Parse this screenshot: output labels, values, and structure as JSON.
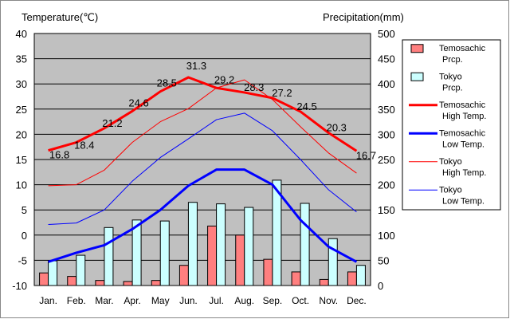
{
  "chart_data": {
    "type": "bar+line",
    "categories": [
      "Jan.",
      "Feb.",
      "Mar.",
      "Apr.",
      "May",
      "Jun.",
      "Jul.",
      "Aug.",
      "Sep.",
      "Oct.",
      "Nov.",
      "Dec."
    ],
    "left_axis": {
      "label": "Temperature(℃)",
      "ylim": [
        -10,
        40
      ],
      "ticks": [
        "40",
        "35",
        "30",
        "25",
        "20",
        "15",
        "10",
        "5",
        "0",
        "-5",
        "-10"
      ]
    },
    "right_axis": {
      "label": "Precipitation(mm)",
      "ylim": [
        0,
        500
      ],
      "ticks": [
        "500",
        "450",
        "400",
        "350",
        "300",
        "250",
        "200",
        "150",
        "100",
        "50",
        "0"
      ]
    },
    "grid": true,
    "legend_position": "right",
    "colors": {
      "temosachic_prcp": "#ff7f7f",
      "tokyo_prcp": "#ccffff",
      "temosachic_high": "#ff0000",
      "temosachic_low": "#0000ff",
      "tokyo_high": "#ff0000",
      "tokyo_low": "#0000ff",
      "plot_bg": "#c0c0c0"
    },
    "bars": [
      {
        "name": "Temosachic Prcp.",
        "axis": "right",
        "values": [
          25,
          18,
          10,
          8,
          10,
          40,
          118,
          100,
          52,
          27,
          12,
          27
        ]
      },
      {
        "name": "Tokyo Prcp.",
        "axis": "right",
        "values": [
          49,
          60,
          115,
          130,
          128,
          165,
          162,
          155,
          209,
          163,
          93,
          40
        ]
      }
    ],
    "lines": [
      {
        "name": "Temosachic High Temp.",
        "axis": "left",
        "width": 3,
        "values": [
          16.8,
          18.4,
          21.2,
          24.6,
          28.5,
          31.3,
          29.2,
          28.3,
          27.2,
          24.5,
          20.3,
          16.7
        ],
        "data_labels": [
          "16.8",
          "18.4",
          "21.2",
          "24.6",
          "28.5",
          "31.3",
          "29.2",
          "28.3",
          "27.2",
          "24.5",
          "20.3",
          "16.7"
        ]
      },
      {
        "name": "Temosachic Low Temp.",
        "axis": "left",
        "width": 3,
        "values": [
          -5.3,
          -3.5,
          -2.0,
          1.2,
          5.0,
          9.8,
          13.0,
          13.0,
          10.0,
          3.0,
          -2.3,
          -5.3
        ]
      },
      {
        "name": "Tokyo High Temp.",
        "axis": "left",
        "width": 1,
        "values": [
          9.8,
          10.0,
          12.9,
          18.4,
          22.5,
          25.1,
          29.2,
          30.8,
          26.9,
          21.5,
          16.3,
          12.3
        ]
      },
      {
        "name": "Tokyo Low Temp.",
        "axis": "left",
        "width": 1,
        "values": [
          2.1,
          2.4,
          5.0,
          10.7,
          15.4,
          19.1,
          22.9,
          24.2,
          20.7,
          15.0,
          9.0,
          4.6
        ]
      }
    ],
    "legend": [
      {
        "kind": "box",
        "key": "temosachic_prcp",
        "line1": "Temosachic",
        "line2": "Prcp."
      },
      {
        "kind": "box",
        "key": "tokyo_prcp",
        "line1": "Tokyo",
        "line2": "Prcp."
      },
      {
        "kind": "line",
        "key": "temosachic_high",
        "width": 3,
        "line1": "Temosachic",
        "line2": "High Temp."
      },
      {
        "kind": "line",
        "key": "temosachic_low",
        "width": 3,
        "line1": "Temosachic",
        "line2": "Low Temp."
      },
      {
        "kind": "line",
        "key": "tokyo_high",
        "width": 1,
        "line1": "Tokyo",
        "line2": "High Temp."
      },
      {
        "kind": "line",
        "key": "tokyo_low",
        "width": 1,
        "line1": "Tokyo",
        "line2": "Low Temp."
      }
    ]
  }
}
